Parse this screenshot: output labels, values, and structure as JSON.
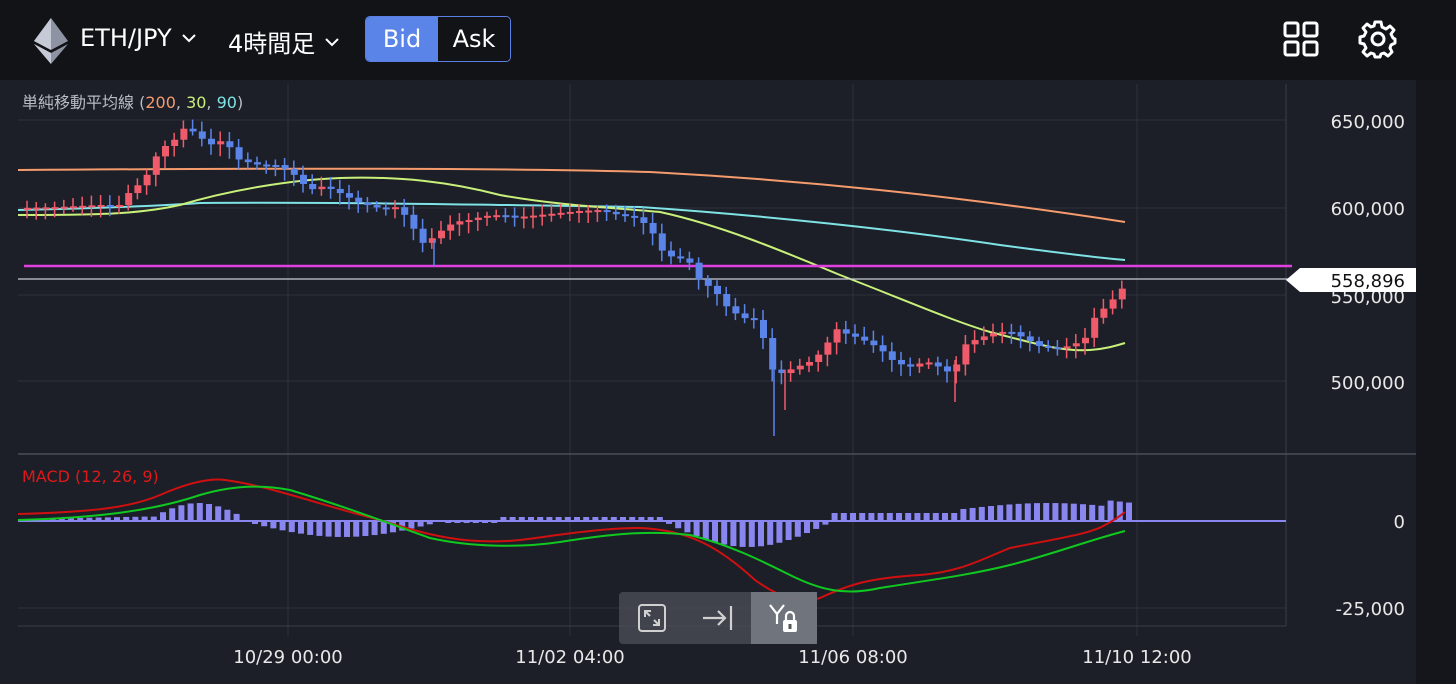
{
  "header": {
    "pair_label": "ETH/JPY",
    "timeframe_label": "4時間足",
    "bid_label": "Bid",
    "ask_label": "Ask"
  },
  "colors": {
    "up": "#ef5b6a",
    "down": "#5b84e9",
    "sma200": "#f59b6e",
    "sma30": "#c8f07a",
    "sma90": "#7fe3e6",
    "level_line": "#e040e0",
    "macd": "#d01010",
    "signal": "#10c820",
    "histogram": "#8a86f0"
  },
  "indicators": {
    "sma_label": "単純移動平均線",
    "sma_open": " (",
    "sma_200": "200",
    "sma_30": "30",
    "sma_90": "90",
    "sma_sep": ", ",
    "sma_close": ")",
    "macd_label": "MACD (12, 26, 9)"
  },
  "price_axis": [
    "650,000",
    "600,000",
    "550,000",
    "500,000"
  ],
  "macd_axis": [
    "0",
    "-25,000"
  ],
  "current_price": "558,896",
  "time_axis": [
    "10/29 00:00",
    "11/02 04:00",
    "11/06 08:00",
    "11/10 12:00"
  ],
  "toolbar": [
    "fullscreen-icon",
    "jump-to-latest-icon",
    "y-axis-lock-icon"
  ]
}
